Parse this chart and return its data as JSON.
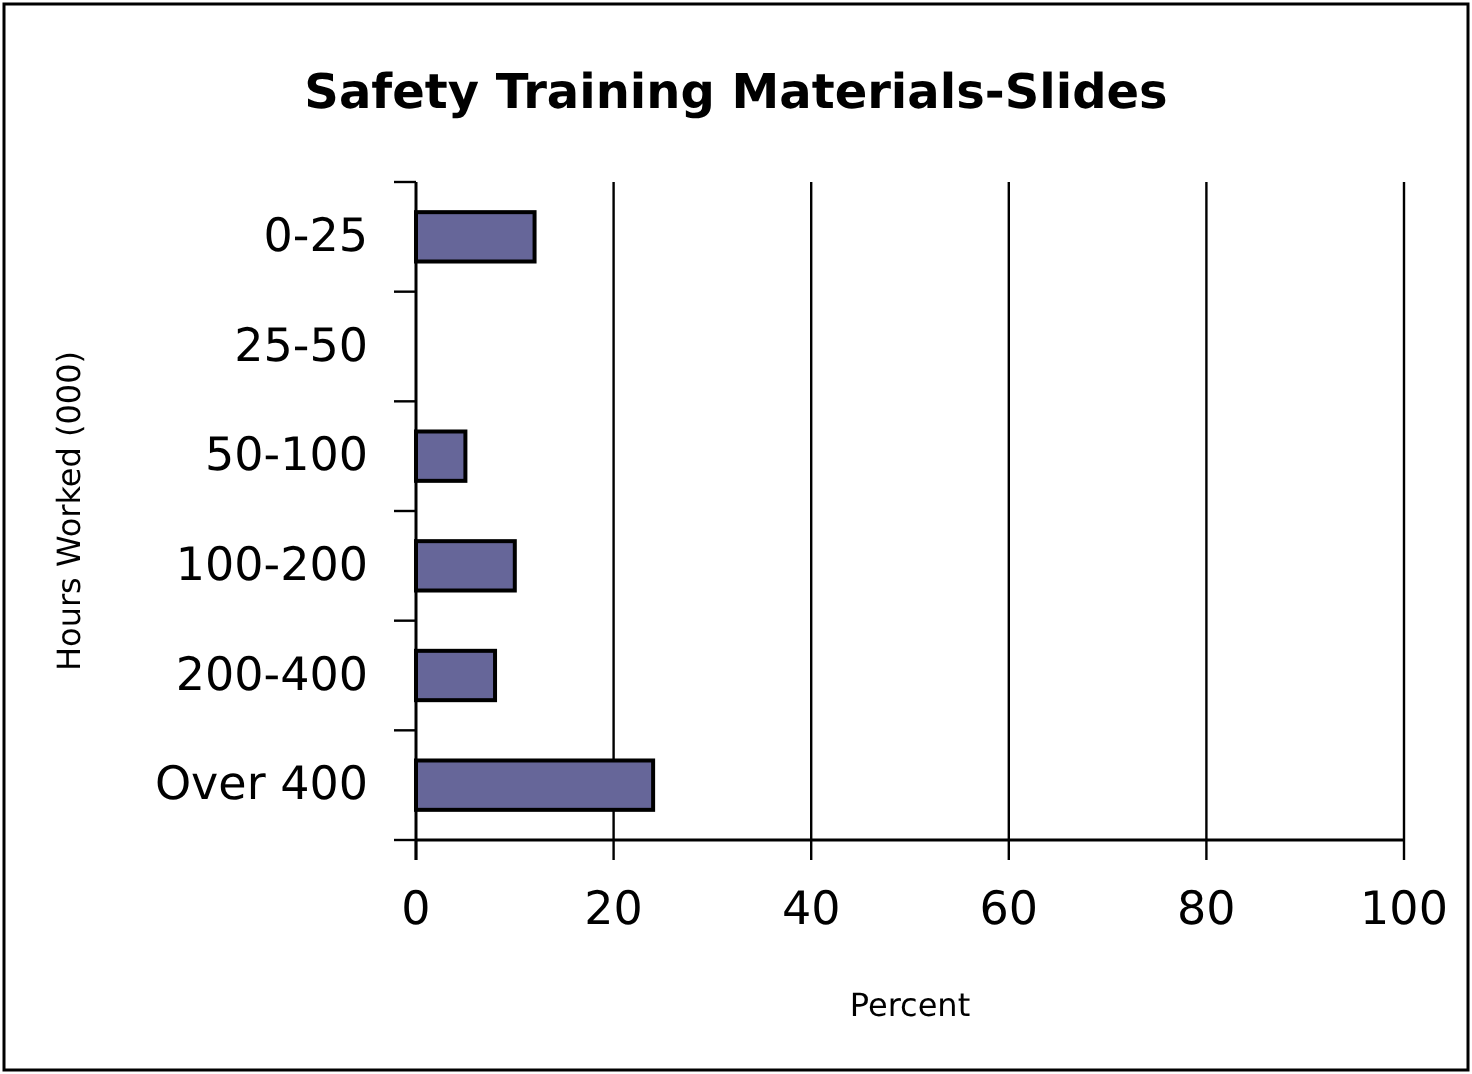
{
  "chart_data": {
    "type": "bar",
    "orientation": "horizontal",
    "title": "Safety Training Materials-Slides",
    "xlabel": "Percent",
    "ylabel": "Hours Worked (000)",
    "categories": [
      "0-25",
      "25-50",
      "50-100",
      "100-200",
      "200-400",
      "Over 400"
    ],
    "values": [
      12,
      0,
      5,
      10,
      8,
      24
    ],
    "color": "#666699",
    "xlim": [
      0,
      100
    ],
    "xticks": [
      0,
      20,
      40,
      60,
      80,
      100
    ],
    "grid": "x"
  }
}
